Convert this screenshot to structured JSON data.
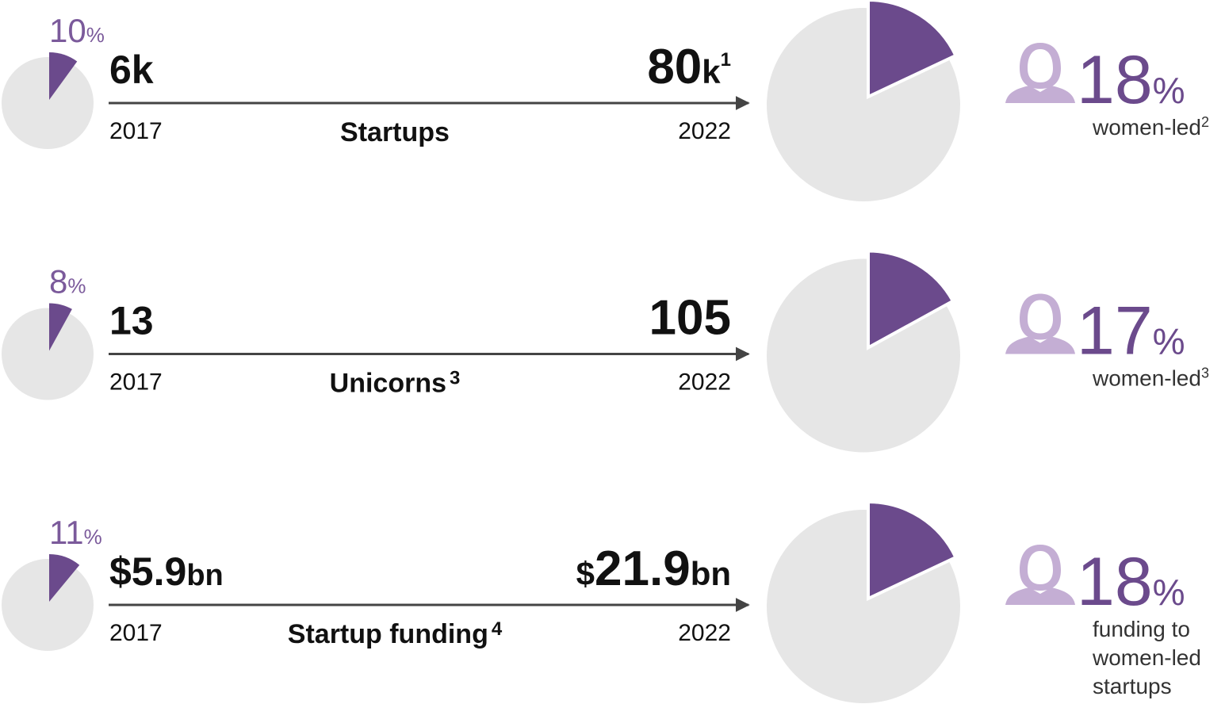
{
  "percent_symbol": "%",
  "rows": [
    {
      "start_share": 10,
      "start_value": {
        "text": "6k"
      },
      "start_year": "2017",
      "metric": {
        "text": "Startups"
      },
      "end_value": {
        "text": "80",
        "unit": "k",
        "note": "1"
      },
      "end_year": "2022",
      "end_share": 18,
      "caption": {
        "lines": [
          "women-led"
        ],
        "note": "2"
      }
    },
    {
      "start_share": 8,
      "start_value": {
        "text": "13"
      },
      "start_year": "2017",
      "metric": {
        "text": "Unicorns",
        "note": "3"
      },
      "end_value": {
        "text": "105"
      },
      "end_year": "2022",
      "end_share": 17,
      "caption": {
        "lines": [
          "women-led"
        ],
        "note": "3"
      }
    },
    {
      "start_share": 11,
      "start_value": {
        "text": "$5.9",
        "unit": "bn"
      },
      "start_year": "2017",
      "metric": {
        "text": "Startup funding",
        "note": "4"
      },
      "end_value": {
        "unit_before": "$",
        "text": "21.9",
        "unit": "bn"
      },
      "end_year": "2022",
      "end_share": 18,
      "caption": {
        "lines": [
          "funding to",
          "women-led",
          "startups"
        ]
      }
    }
  ]
}
